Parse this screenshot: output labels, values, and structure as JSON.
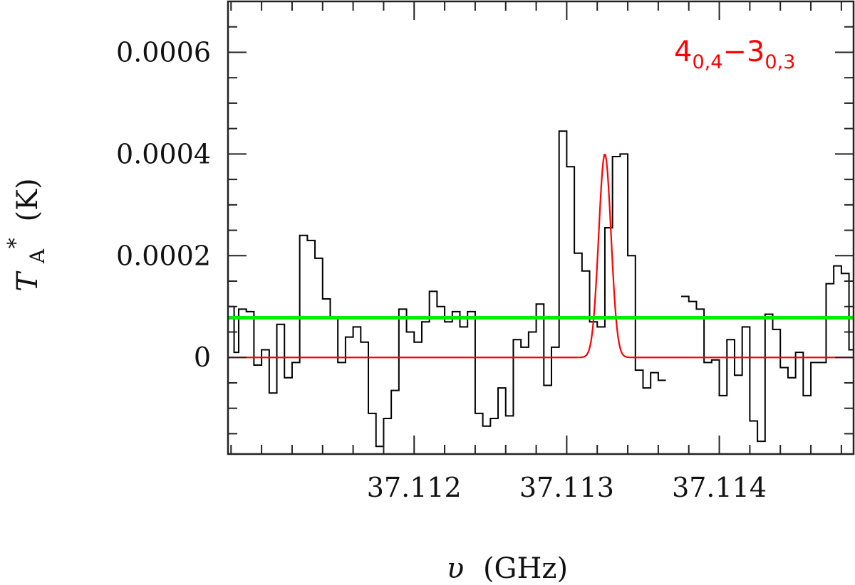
{
  "chart_data": {
    "type": "line",
    "xlabel": "υ (GHz)",
    "xlabel_symbol": "υ",
    "xlabel_unit": "(GHz)",
    "ylabel": "T_A* (K)",
    "ylabel_symbol": "T",
    "ylabel_sub": "A",
    "ylabel_sup": "*",
    "ylabel_unit": "(K)",
    "xlim": [
      37.11078,
      37.11488
    ],
    "ylim": [
      -0.00019,
      0.0007
    ],
    "x_ticks": [
      37.112,
      37.113,
      37.114
    ],
    "x_tick_labels": [
      "37.112",
      "37.113",
      "37.114"
    ],
    "y_ticks": [
      0,
      0.0002,
      0.0004,
      0.0006
    ],
    "y_tick_labels": [
      "0",
      "0.0002",
      "0.0004",
      "0.0006"
    ],
    "annotation": {
      "parts": [
        {
          "t": "4"
        },
        {
          "t": "0,4",
          "sub": true
        },
        {
          "t": "−3"
        },
        {
          "t": "0,3",
          "sub": true
        }
      ],
      "color": "#ff0000"
    },
    "series": [
      {
        "style": "step",
        "color": "#000000",
        "points": [
          [
            37.11078,
            0.0001
          ],
          [
            37.11082,
            1e-05
          ],
          [
            37.11085,
            9.5e-05
          ],
          [
            37.1109,
            9e-05
          ],
          [
            37.11095,
            -1.5e-05
          ],
          [
            37.111,
            1.5e-05
          ],
          [
            37.11105,
            -7e-05
          ],
          [
            37.1111,
            6.5e-05
          ],
          [
            37.11115,
            -4e-05
          ],
          [
            37.1112,
            -1e-05
          ],
          [
            37.11125,
            0.00024
          ],
          [
            37.1113,
            0.00023
          ],
          [
            37.11135,
            0.000195
          ],
          [
            37.1114,
            0.000115
          ],
          [
            37.11145,
            8e-05
          ],
          [
            37.1115,
            -1e-05
          ],
          [
            37.11155,
            4e-05
          ],
          [
            37.1116,
            6e-05
          ],
          [
            37.11165,
            3e-05
          ],
          [
            37.1117,
            -0.00011
          ],
          [
            37.11175,
            -0.000175
          ],
          [
            37.1118,
            -0.00012
          ],
          [
            37.11185,
            -6.5e-05
          ],
          [
            37.1119,
            9.5e-05
          ],
          [
            37.11195,
            5e-05
          ],
          [
            37.112,
            3e-05
          ],
          [
            37.11205,
            7e-05
          ],
          [
            37.1121,
            0.00013
          ],
          [
            37.11215,
            0.0001
          ],
          [
            37.1122,
            7e-05
          ],
          [
            37.11225,
            9e-05
          ],
          [
            37.1123,
            6e-05
          ],
          [
            37.11235,
            9e-05
          ],
          [
            37.1124,
            -0.00011
          ],
          [
            37.11245,
            -0.000135
          ],
          [
            37.1125,
            -0.00012
          ],
          [
            37.11255,
            -6e-05
          ],
          [
            37.1126,
            -0.000115
          ],
          [
            37.11265,
            3.5e-05
          ],
          [
            37.1127,
            2e-05
          ],
          [
            37.11275,
            5e-05
          ],
          [
            37.1128,
            0.000105
          ],
          [
            37.11285,
            -5.5e-05
          ],
          [
            37.1129,
            2e-05
          ],
          [
            37.11295,
            0.000445
          ],
          [
            37.113,
            0.000375
          ],
          [
            37.11305,
            0.000205
          ],
          [
            37.1131,
            0.00017
          ],
          [
            37.11315,
            7e-05
          ],
          [
            37.1132,
            6e-05
          ],
          [
            37.11325,
            0.000255
          ],
          [
            37.1133,
            0.000395
          ],
          [
            37.11335,
            0.0004
          ],
          [
            37.1134,
            0.0002
          ],
          [
            37.11345,
            -2.5e-05
          ],
          [
            37.1135,
            -6e-05
          ],
          [
            37.11355,
            -3e-05
          ],
          [
            37.1136,
            -4.5e-05
          ],
          [
            37.11365,
            null
          ],
          [
            37.11375,
            0.00012
          ],
          [
            37.1138,
            0.00011
          ],
          [
            37.11385,
            9.5e-05
          ],
          [
            37.1139,
            -1e-05
          ],
          [
            37.11395,
            -5e-06
          ],
          [
            37.114,
            -7.5e-05
          ],
          [
            37.11405,
            3.5e-05
          ],
          [
            37.1141,
            -3.5e-05
          ],
          [
            37.11415,
            6e-05
          ],
          [
            37.1142,
            -0.000125
          ],
          [
            37.11425,
            -0.000165
          ],
          [
            37.1143,
            8.5e-05
          ],
          [
            37.11435,
            5.5e-05
          ],
          [
            37.1144,
            -2e-05
          ],
          [
            37.11445,
            -4e-05
          ],
          [
            37.1145,
            1e-05
          ],
          [
            37.11455,
            -7.5e-05
          ],
          [
            37.1146,
            -1e-05
          ],
          [
            37.11465,
            -1e-05
          ],
          [
            37.1147,
            0.000145
          ],
          [
            37.11475,
            0.00018
          ],
          [
            37.1148,
            0.000165
          ],
          [
            37.11485,
            1.5e-05
          ]
        ]
      },
      {
        "style": "gaussian",
        "color": "#ff0000",
        "amplitude": 0.0004,
        "center": 37.11325,
        "fwhm": 9.5e-05
      },
      {
        "style": "hline",
        "color": "#00ee00",
        "y": 7.8e-05
      }
    ]
  }
}
